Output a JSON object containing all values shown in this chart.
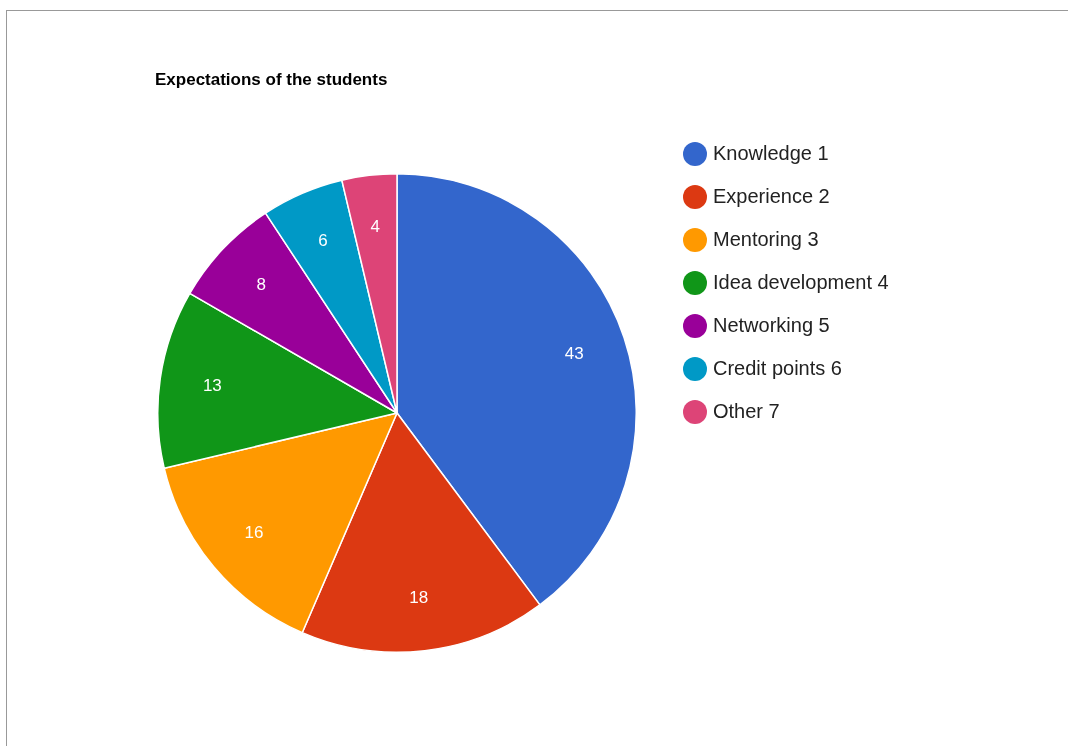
{
  "chart_data": {
    "type": "pie",
    "title": "Expectations of the students",
    "categories": [
      "Knowledge 1",
      "Experience 2",
      "Mentoring 3",
      "Idea development 4",
      "Networking 5",
      "Credit points 6",
      "Other 7"
    ],
    "values": [
      43,
      18,
      16,
      13,
      8,
      6,
      4
    ],
    "colors": [
      "#3366cc",
      "#dc3912",
      "#ff9900",
      "#109618",
      "#990099",
      "#0099c6",
      "#dd4477"
    ],
    "data_labels": true,
    "legend": "right"
  }
}
